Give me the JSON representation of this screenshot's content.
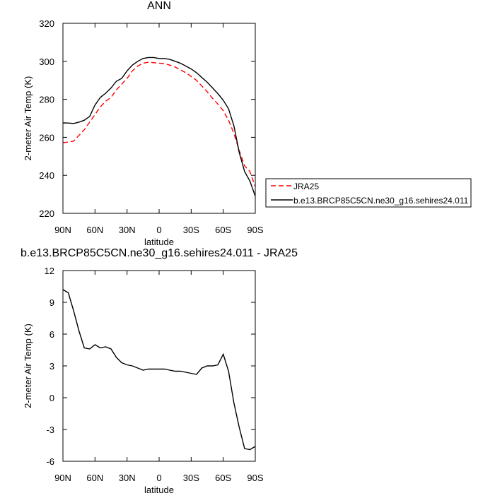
{
  "chart_data": [
    {
      "type": "line",
      "title": "ANN",
      "xlabel": "latitude",
      "ylabel": "2-meter Air Temp (K)",
      "x": [
        90,
        85,
        80,
        75,
        70,
        65,
        60,
        55,
        50,
        45,
        40,
        35,
        30,
        25,
        20,
        15,
        10,
        5,
        0,
        -5,
        -10,
        -15,
        -20,
        -25,
        -30,
        -35,
        -40,
        -45,
        -50,
        -55,
        -60,
        -65,
        -70,
        -75,
        -80,
        -85,
        -90
      ],
      "xlim": [
        90,
        -90
      ],
      "xticks": [
        {
          "value": 90,
          "label": "90N"
        },
        {
          "value": 60,
          "label": "60N"
        },
        {
          "value": 30,
          "label": "30N"
        },
        0,
        {
          "value": -30,
          "label": "30S"
        },
        {
          "value": -60,
          "label": "60S"
        },
        {
          "value": -90,
          "label": "90S"
        }
      ],
      "ylim": [
        220,
        320
      ],
      "yticks": [
        220,
        240,
        260,
        280,
        300,
        320
      ],
      "legend": "right",
      "series": [
        {
          "name": "JRA25",
          "color": "#ff0000",
          "line_style": "dashed",
          "values": [
            257.2,
            257.5,
            258,
            261,
            264,
            268,
            272,
            276,
            279,
            281,
            285,
            288,
            291,
            295,
            297.5,
            299,
            299.5,
            299.3,
            299,
            298.8,
            298,
            297,
            295.5,
            294,
            292,
            290,
            287,
            284,
            280.5,
            277.5,
            274,
            269,
            262,
            253,
            245,
            242,
            234
          ]
        },
        {
          "name": "b.e13.BRCP85C5CN.ne30_g16.sehires24.011",
          "color": "#000000",
          "line_style": "solid",
          "values": [
            267.6,
            267.5,
            267.3,
            268,
            269,
            271,
            277,
            281,
            283.2,
            286,
            289.5,
            291,
            295,
            298,
            300,
            301.5,
            302,
            302,
            301.5,
            301.5,
            301,
            300,
            299,
            297.5,
            296,
            294,
            291.5,
            289,
            286,
            283,
            279.5,
            275,
            266,
            252,
            242,
            237,
            229
          ]
        }
      ]
    },
    {
      "type": "line",
      "title": "b.e13.BRCP85C5CN.ne30_g16.sehires24.011 - JRA25",
      "xlabel": "latitude",
      "ylabel": "2-meter Air Temp (K)",
      "x": [
        90,
        85,
        80,
        75,
        70,
        65,
        60,
        55,
        50,
        45,
        40,
        35,
        30,
        25,
        20,
        15,
        10,
        5,
        0,
        -5,
        -10,
        -15,
        -20,
        -25,
        -30,
        -35,
        -40,
        -45,
        -50,
        -55,
        -60,
        -65,
        -70,
        -75,
        -80,
        -85,
        -90
      ],
      "xlim": [
        90,
        -90
      ],
      "xticks": [
        {
          "value": 90,
          "label": "90N"
        },
        {
          "value": 60,
          "label": "60N"
        },
        {
          "value": 30,
          "label": "30N"
        },
        0,
        {
          "value": -30,
          "label": "30S"
        },
        {
          "value": -60,
          "label": "60S"
        },
        {
          "value": -90,
          "label": "90S"
        }
      ],
      "ylim": [
        -6,
        12
      ],
      "yticks": [
        -6,
        -3,
        0,
        3,
        6,
        9,
        12
      ],
      "series": [
        {
          "color": "#000000",
          "line_style": "solid",
          "values": [
            10.2,
            9.9,
            8.2,
            6.3,
            4.7,
            4.6,
            5.0,
            4.7,
            4.8,
            4.6,
            3.8,
            3.3,
            3.1,
            3.0,
            2.8,
            2.6,
            2.7,
            2.7,
            2.7,
            2.7,
            2.6,
            2.5,
            2.5,
            2.4,
            2.3,
            2.2,
            2.8,
            3.0,
            3.0,
            3.1,
            4.1,
            2.5,
            -0.5,
            -2.8,
            -4.8,
            -4.9,
            -4.6
          ]
        }
      ]
    }
  ]
}
